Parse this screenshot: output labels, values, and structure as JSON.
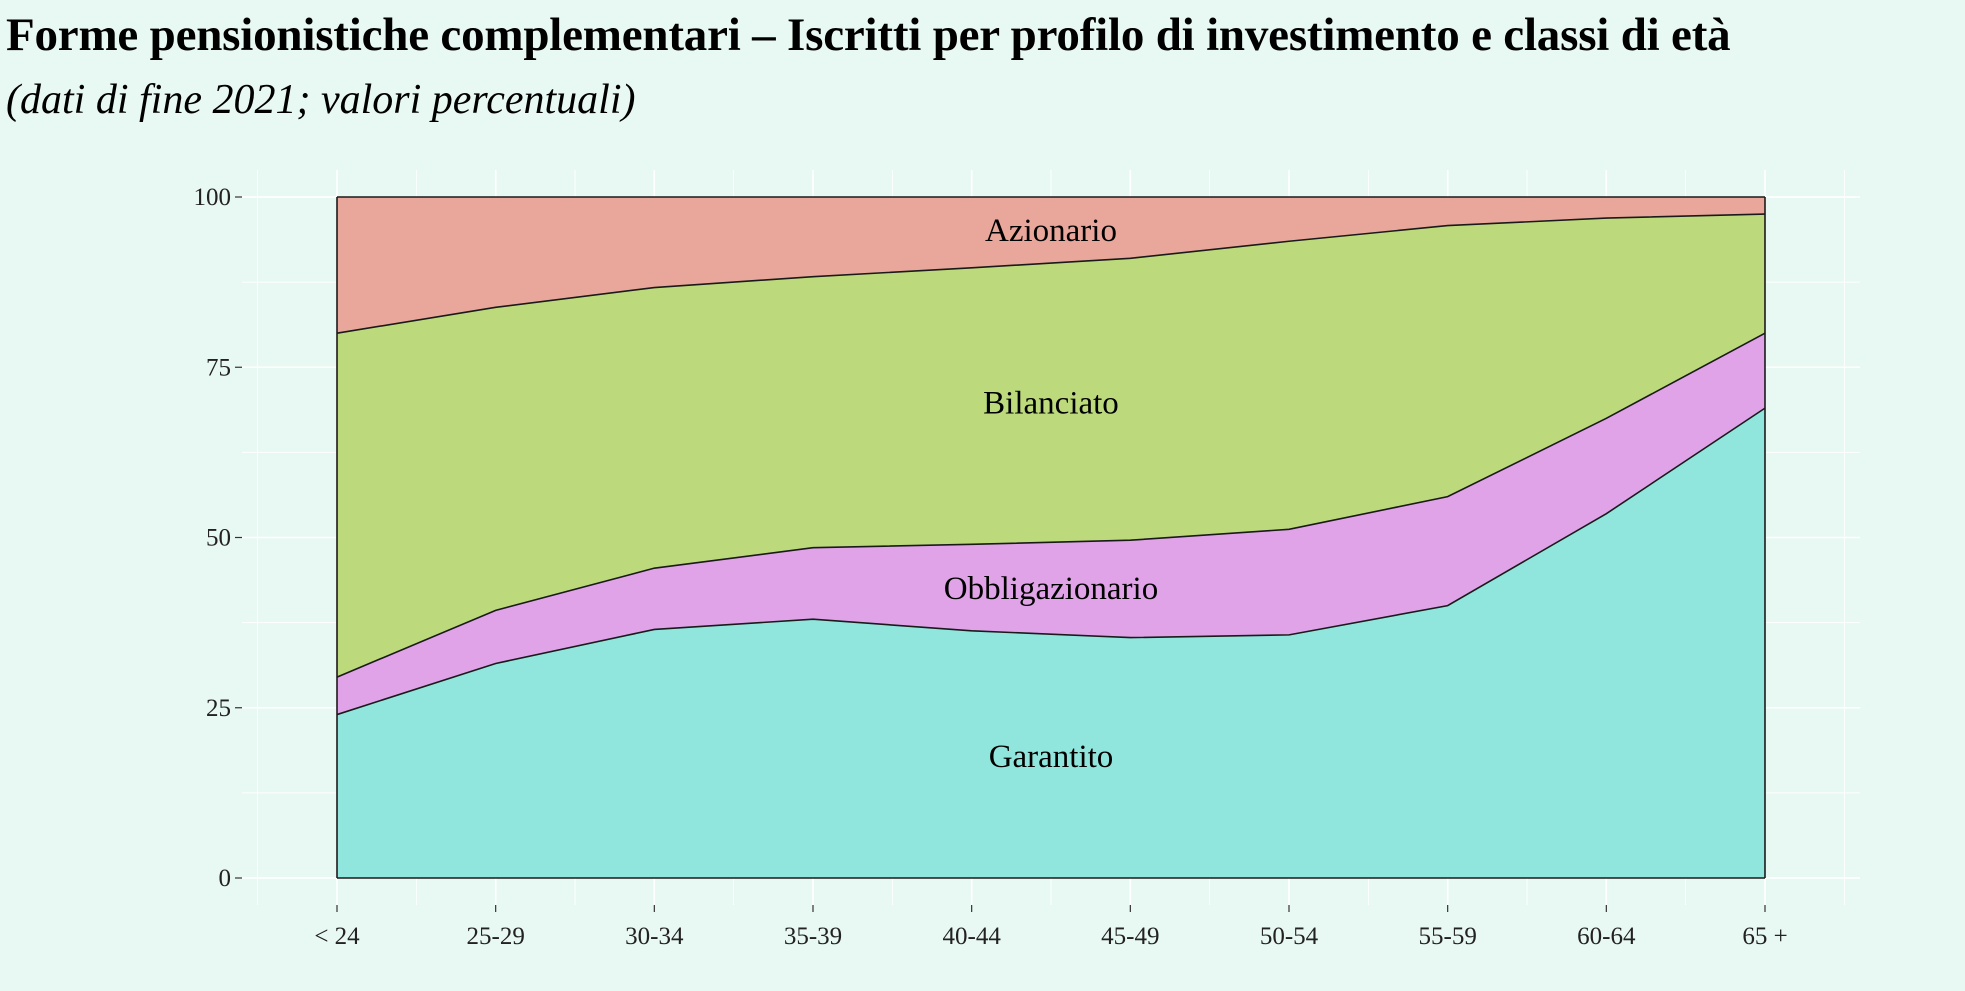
{
  "title": "Forme pensionistiche complementari – Iscritti per profilo di investimento e classi di età",
  "subtitle": "(dati di fine 2021; valori percentuali)",
  "chart_data": {
    "type": "area",
    "stacked": true,
    "categories": [
      "< 24",
      "25-29",
      "30-34",
      "35-39",
      "40-44",
      "45-49",
      "50-54",
      "55-59",
      "60-64",
      "65 +"
    ],
    "ylim": [
      0,
      100
    ],
    "yticks": [
      0,
      25,
      50,
      75,
      100
    ],
    "grid": true,
    "xlabel": "",
    "ylabel": "",
    "series": [
      {
        "name": "Garantito",
        "color": "#90e5dc",
        "values": [
          24,
          31.5,
          36.5,
          38,
          36.3,
          35.3,
          35.7,
          40,
          53.5,
          69
        ]
      },
      {
        "name": "Obbligazionario",
        "color": "#e0a3e8",
        "values": [
          5.5,
          7.8,
          9,
          10.5,
          12.7,
          14.3,
          15.5,
          16,
          14,
          11
        ]
      },
      {
        "name": "Bilanciato",
        "color": "#bcd97c",
        "values": [
          50.5,
          44.5,
          41.2,
          39.8,
          40.6,
          41.4,
          42.3,
          39.8,
          29.4,
          17.5
        ]
      },
      {
        "name": "Azionario",
        "color": "#e9a69a",
        "values": [
          20,
          16.2,
          13.3,
          11.7,
          10.4,
          9,
          6.5,
          4.2,
          3.1,
          2.5
        ]
      }
    ]
  }
}
